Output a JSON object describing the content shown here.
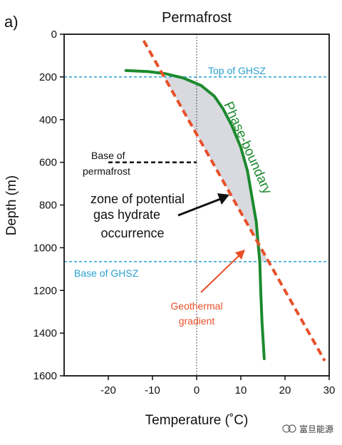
{
  "panel_label": "a)",
  "watermark": "富旦能源",
  "chart_data": {
    "type": "line",
    "title": "Permafrost",
    "xlabel": "Temperature (˚C)",
    "ylabel": "Depth (m)",
    "xlim": [
      -30,
      30
    ],
    "ylim": [
      1600,
      0
    ],
    "x_ticks": [
      -20,
      -10,
      0,
      10,
      20,
      30
    ],
    "y_ticks": [
      0,
      200,
      400,
      600,
      800,
      1000,
      1200,
      1400,
      1600
    ],
    "grid": false,
    "series": [
      {
        "name": "Phase-boundary",
        "color": "#1c8a2e",
        "style": "solid",
        "points": [
          [
            -16,
            170
          ],
          [
            -11,
            175
          ],
          [
            -7,
            185
          ],
          [
            -3,
            205
          ],
          [
            1,
            240
          ],
          [
            4,
            290
          ],
          [
            6,
            350
          ],
          [
            8,
            430
          ],
          [
            10,
            530
          ],
          [
            11.5,
            640
          ],
          [
            12.5,
            760
          ],
          [
            13.5,
            880
          ],
          [
            14,
            1000
          ],
          [
            14.3,
            1070
          ],
          [
            14.5,
            1200
          ],
          [
            14.8,
            1350
          ],
          [
            15.3,
            1520
          ]
        ]
      },
      {
        "name": "Geothermal gradient",
        "color": "#e8502a",
        "style": "dashed",
        "points": [
          [
            -12,
            30
          ],
          [
            29,
            1530
          ]
        ]
      }
    ],
    "reference_lines": [
      {
        "label": "Top of GHSZ",
        "depth": 200,
        "color": "#2aa0d0",
        "style": "dotted"
      },
      {
        "label": "Base of GHSZ",
        "depth": 1065,
        "color": "#2aa0d0",
        "style": "dotted"
      },
      {
        "label": "Base of permafrost",
        "depth": 600,
        "x_range": [
          -20,
          0
        ],
        "color": "#111111",
        "style": "dashed"
      }
    ],
    "annotations": [
      {
        "text_lines": [
          "zone of potential",
          "gas hydrate",
          "occurrence"
        ],
        "shaded_region": "between Phase-boundary and Geothermal gradient",
        "shade_color": "#d8dadf"
      }
    ],
    "zero_line": {
      "x": 0,
      "style": "dotted",
      "color": "#222222"
    }
  },
  "labels": {
    "top_ghsz": "Top of GHSZ",
    "base_ghsz": "Base of GHSZ",
    "base_permafrost_1": "Base of",
    "base_permafrost_2": "permafrost",
    "zone_1": "zone of potential",
    "zone_2": "gas hydrate",
    "zone_3": "occurrence",
    "phase_boundary": "Phase-boundary",
    "geothermal_1": "Geothermal",
    "geothermal_2": "gradient"
  }
}
